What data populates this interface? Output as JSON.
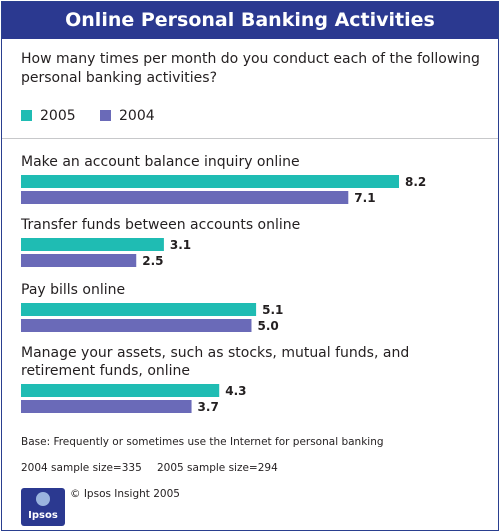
{
  "header": {
    "title": "Online Personal Banking Activities"
  },
  "question": "How many times per month do you conduct each of the following personal banking activities?",
  "colors": {
    "header_bg": "#2b3990",
    "series_2005": "#1fbcb3",
    "series_2004": "#6a6ab8"
  },
  "chart_data": {
    "type": "bar",
    "orientation": "horizontal",
    "categories": [
      "Make an account balance inquiry online",
      "Transfer funds between accounts online",
      "Pay bills online",
      "Manage your assets, such as stocks, mutual funds, and retirement funds, online"
    ],
    "series": [
      {
        "name": "2005",
        "values": [
          8.2,
          3.1,
          5.1,
          4.3
        ],
        "value_labels": [
          "8.2",
          "3.1",
          "5.1",
          "4.3"
        ],
        "color": "#1fbcb3"
      },
      {
        "name": "2004",
        "values": [
          7.1,
          2.5,
          5.0,
          3.7
        ],
        "value_labels": [
          "7.1",
          "2.5",
          "5.0",
          "3.7"
        ],
        "color": "#6a6ab8"
      }
    ],
    "xlim": [
      0,
      8.2
    ],
    "legend": "top-left",
    "grid": false
  },
  "footer": {
    "base": "Base: Frequently or sometimes use the Internet for personal banking",
    "sample_2004": "2004 sample size=335",
    "sample_2005": "2005 sample size=294",
    "logo_text": "Ipsos",
    "copyright": "© Ipsos Insight 2005"
  }
}
